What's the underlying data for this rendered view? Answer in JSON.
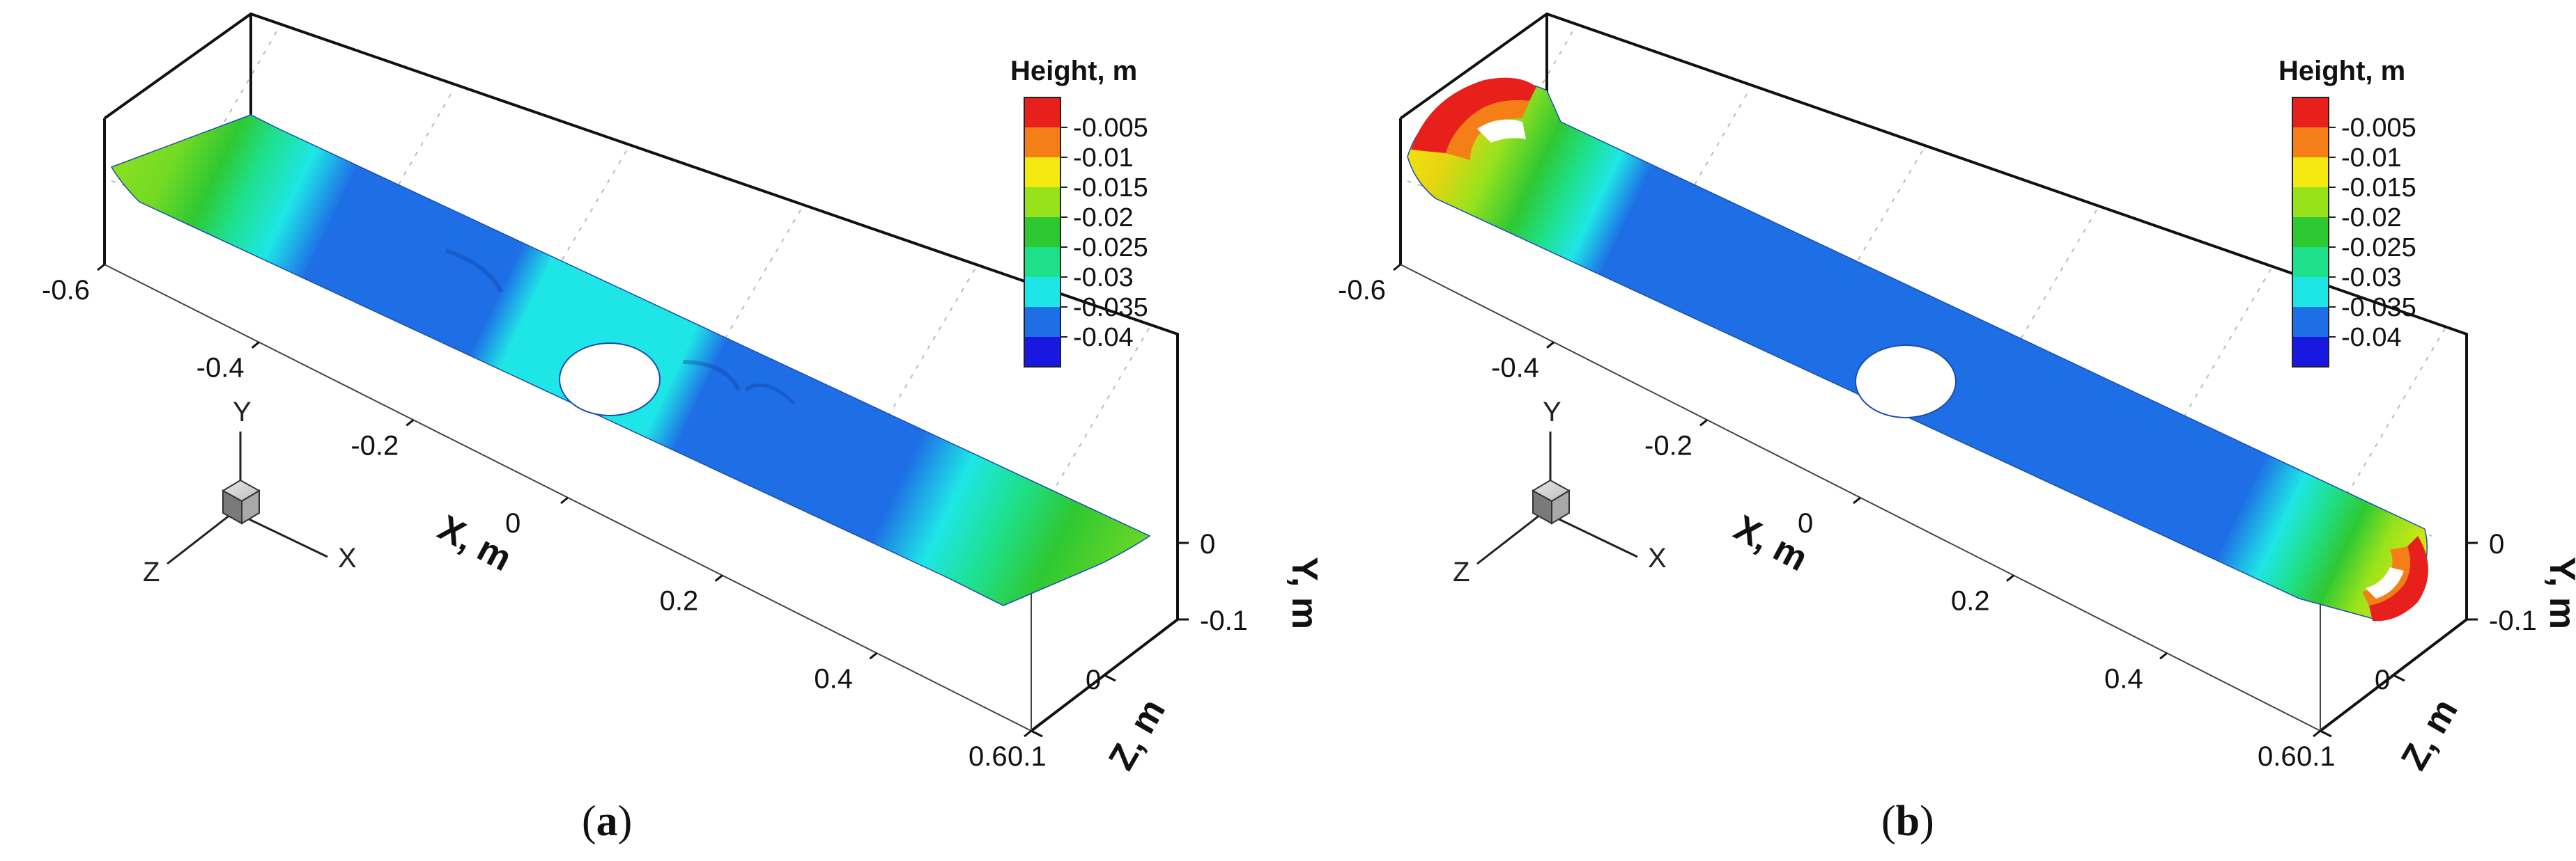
{
  "chart_data": [
    {
      "type": "heatmap",
      "panel_label": "a",
      "legend": {
        "title": "Height, m",
        "levels": [
          -0.005,
          -0.01,
          -0.015,
          -0.02,
          -0.025,
          -0.03,
          -0.035,
          -0.04
        ],
        "labels": [
          "-0.005",
          "-0.01",
          "-0.015",
          "-0.02",
          "-0.025",
          "-0.03",
          "-0.035",
          "-0.04"
        ],
        "colors": [
          "#e8201c",
          "#f47f16",
          "#f4ea10",
          "#98e21c",
          "#2ec832",
          "#1ee08a",
          "#1ee6e6",
          "#1e6ee6",
          "#1818e0"
        ]
      },
      "axes": {
        "x": {
          "label": "X, m",
          "ticks": [
            "-0.6",
            "-0.4",
            "-0.2",
            "0",
            "0.2",
            "0.4",
            "0.6"
          ],
          "range": [
            -0.6,
            0.6
          ]
        },
        "y": {
          "label": "Y, m",
          "ticks": [
            "0",
            "-0.1"
          ],
          "range": [
            -0.1,
            0
          ]
        },
        "z": {
          "label": "Z, m",
          "ticks": [
            "0",
            "0.1"
          ],
          "range": [
            -0.1,
            0.1
          ]
        }
      },
      "triad": [
        "Y",
        "X",
        "Z"
      ]
    },
    {
      "type": "heatmap",
      "panel_label": "b",
      "legend": {
        "title": "Height, m",
        "levels": [
          -0.005,
          -0.01,
          -0.015,
          -0.02,
          -0.025,
          -0.03,
          -0.035,
          -0.04
        ],
        "labels": [
          "-0.005",
          "-0.01",
          "-0.015",
          "-0.02",
          "-0.025",
          "-0.03",
          "-0.035",
          "-0.04"
        ],
        "colors": [
          "#e8201c",
          "#f47f16",
          "#f4ea10",
          "#98e21c",
          "#2ec832",
          "#1ee08a",
          "#1ee6e6",
          "#1e6ee6",
          "#1818e0"
        ]
      },
      "axes": {
        "x": {
          "label": "X, m",
          "ticks": [
            "-0.6",
            "-0.4",
            "-0.2",
            "0",
            "0.2",
            "0.4",
            "0.6"
          ],
          "range": [
            -0.6,
            0.6
          ]
        },
        "y": {
          "label": "Y, m",
          "ticks": [
            "0",
            "-0.1"
          ],
          "range": [
            -0.1,
            0
          ]
        },
        "z": {
          "label": "Z, m",
          "ticks": [
            "0",
            "0.1"
          ],
          "range": [
            -0.1,
            0.1
          ]
        }
      },
      "triad": [
        "Y",
        "X",
        "Z"
      ]
    }
  ],
  "colors": {
    "frame": "#111111",
    "surface_main": "#1e6ee6",
    "surface_cyan": "#1ee6e6",
    "surface_green": "#98e21c"
  }
}
